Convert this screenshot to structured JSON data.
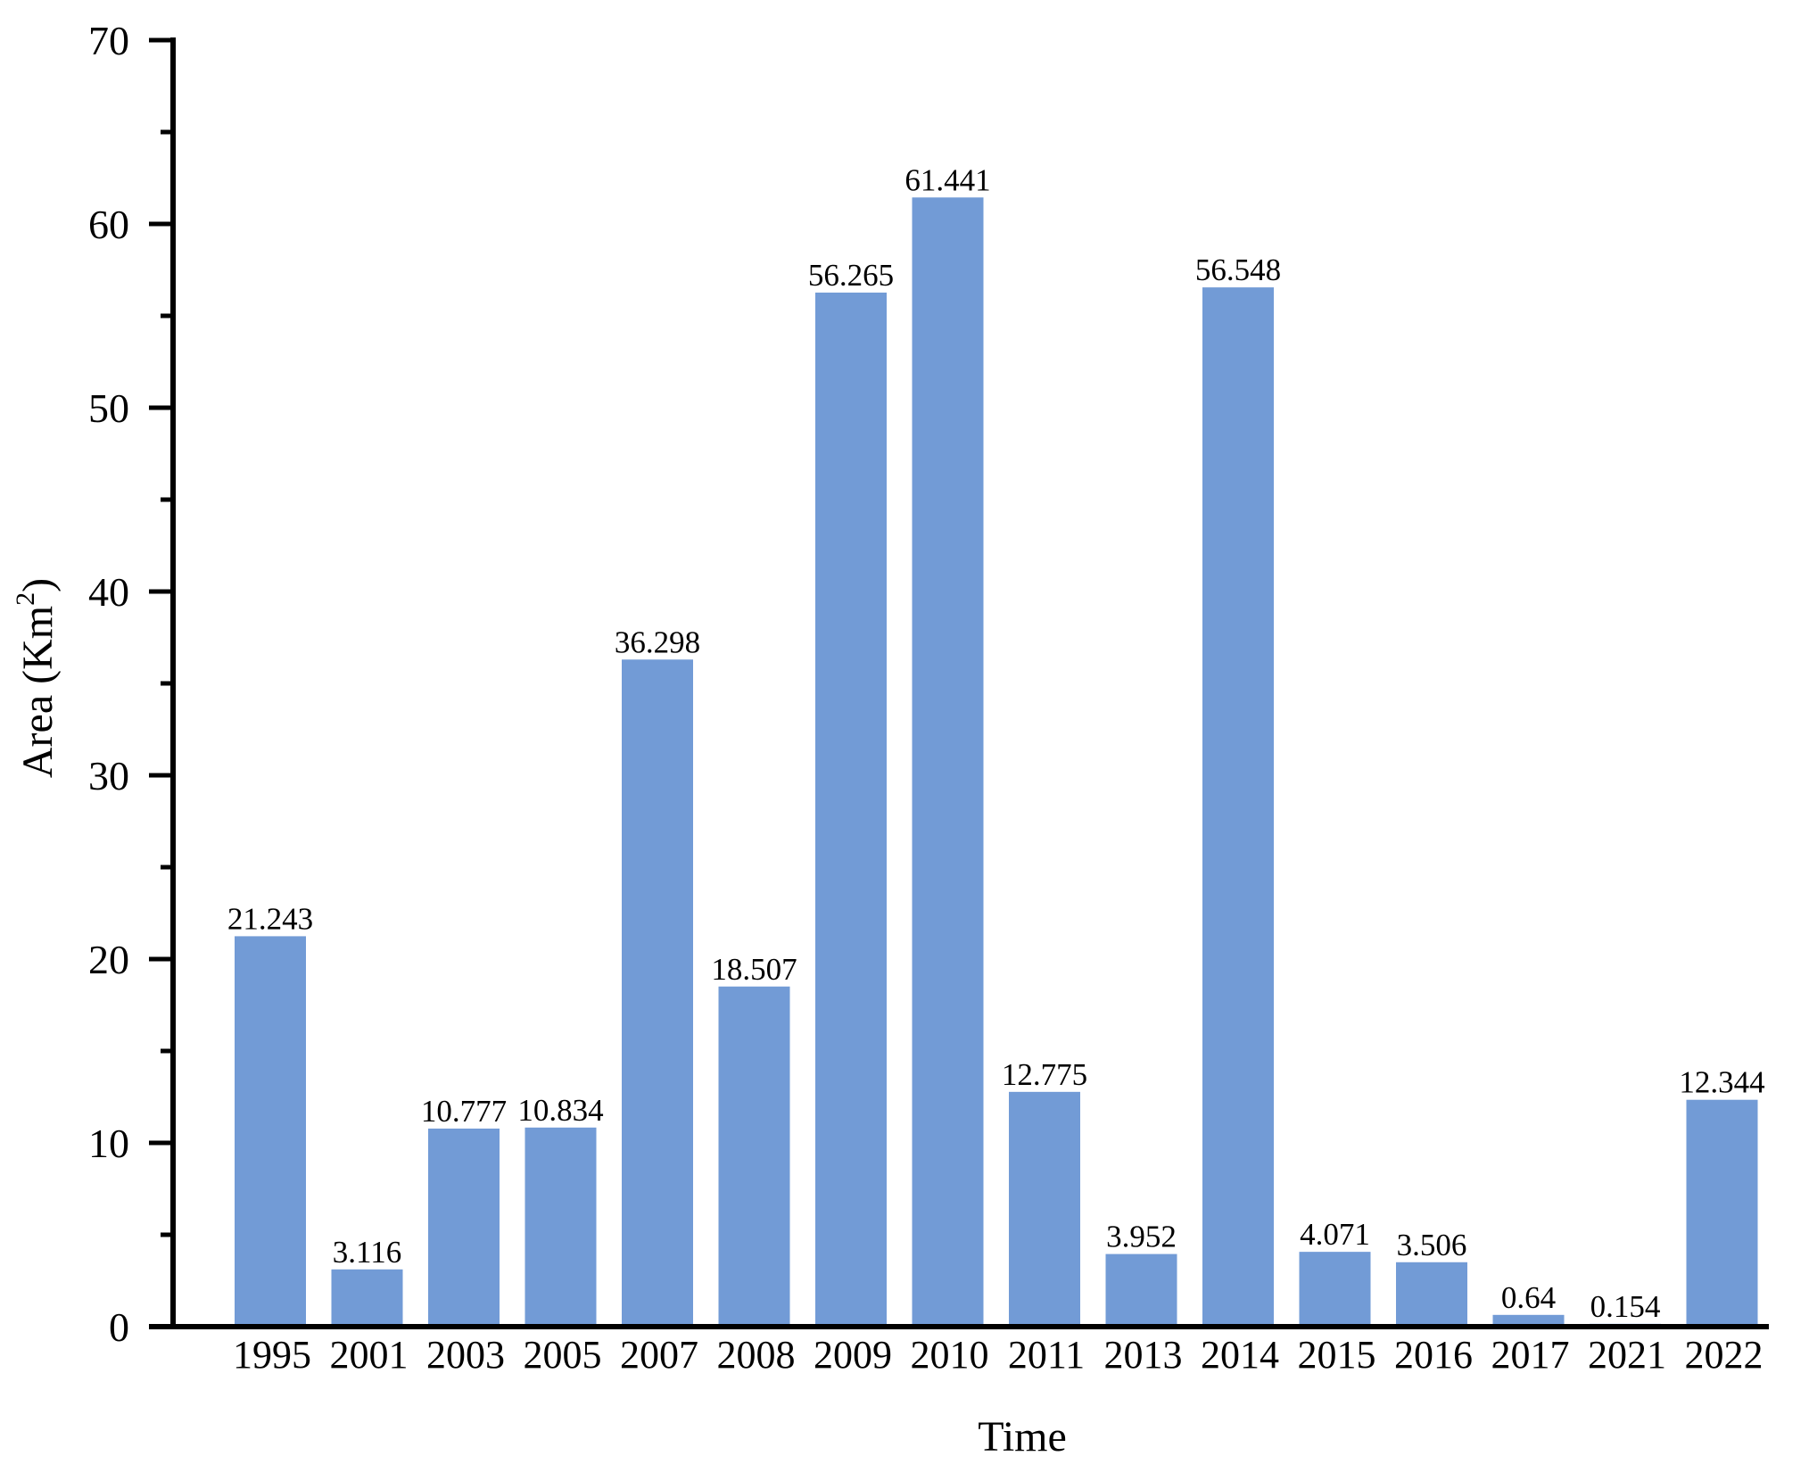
{
  "chart_data": {
    "type": "bar",
    "title": "",
    "xlabel": "Time",
    "ylabel": "Area (Km",
    "ylabel_superscript": "2",
    "ylabel_suffix": ")",
    "ylim": [
      0,
      70
    ],
    "yticks": [
      0,
      10,
      20,
      30,
      40,
      50,
      60,
      70
    ],
    "minor_yticks": [
      5,
      15,
      25,
      35,
      45,
      55,
      65
    ],
    "grid": false,
    "legend": null,
    "bar_color": "#729bd6",
    "categories": [
      "1995",
      "2001",
      "2003",
      "2005",
      "2007",
      "2008",
      "2009",
      "2010",
      "2011",
      "2013",
      "2014",
      "2015",
      "2016",
      "2017",
      "2021",
      "2022"
    ],
    "values": [
      21.243,
      3.116,
      10.777,
      10.834,
      36.298,
      18.507,
      56.265,
      61.441,
      12.775,
      3.952,
      56.548,
      4.071,
      3.506,
      0.64,
      0.154,
      12.344
    ],
    "data_labels": [
      "21.243",
      "3.116",
      "10.777",
      "10.834",
      "36.298",
      "18.507",
      "56.265",
      "61.441",
      "12.775",
      "3.952",
      "56.548",
      "4.071",
      "3.506",
      "0.64",
      "0.154",
      "12.344"
    ]
  }
}
